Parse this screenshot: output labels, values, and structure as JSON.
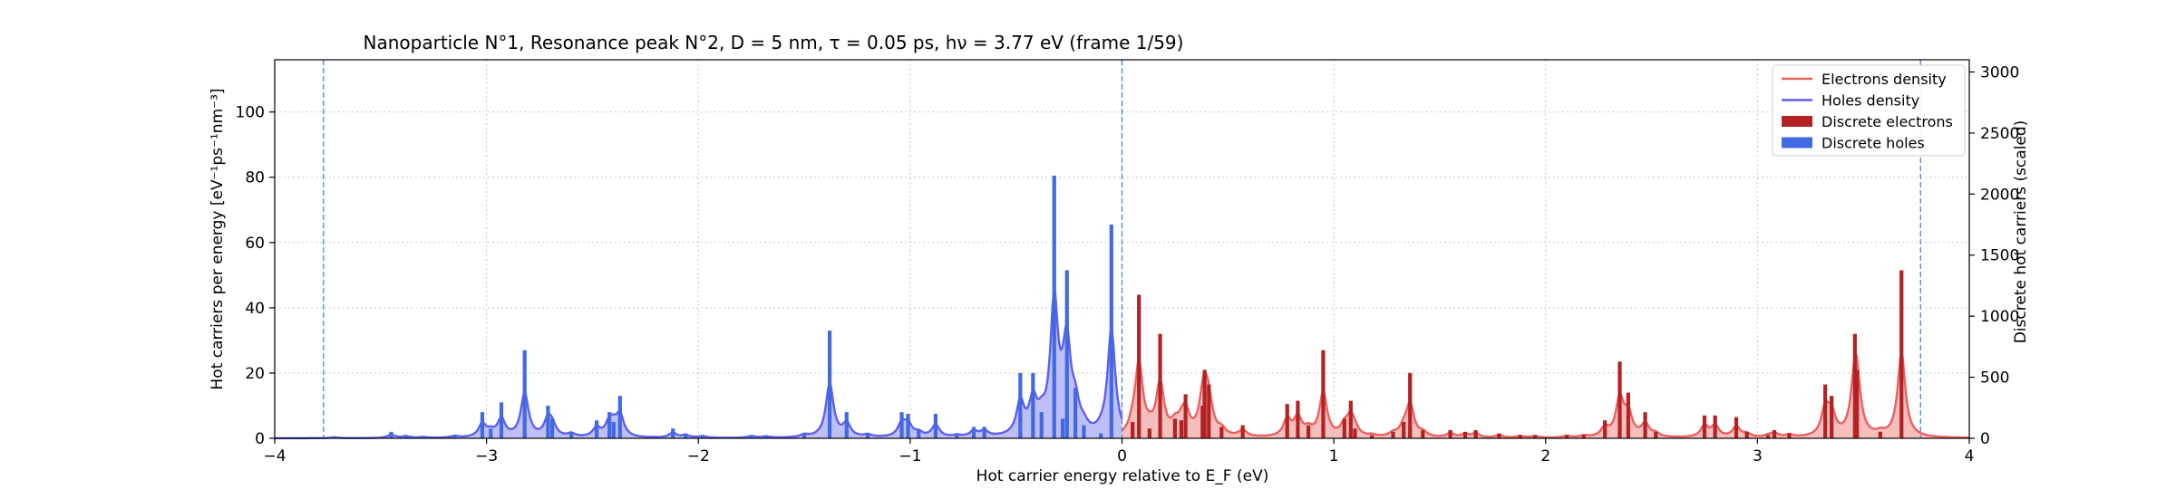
{
  "chart_data": {
    "type": "bar",
    "title": "Nanoparticle N°1, Resonance peak N°2, D = 5 nm, τ = 0.05 ps, hν = 3.77 eV   (frame 1/59)",
    "xlabel": "Hot carrier energy relative to E_F (eV)",
    "ylabel": "Hot carriers per energy [eV⁻¹ps⁻¹nm⁻³]",
    "y2label": "Discrete hot carriers (scaled)",
    "xlim": [
      -4,
      4
    ],
    "ylim": [
      0,
      116
    ],
    "y2lim": [
      0,
      3100
    ],
    "xticks": [
      -4,
      -3,
      -2,
      -1,
      0,
      1,
      2,
      3,
      4
    ],
    "xtick_labels": [
      "−4",
      "−3",
      "−2",
      "−1",
      "0",
      "1",
      "2",
      "3",
      "4"
    ],
    "yticks": [
      0,
      20,
      40,
      60,
      80,
      100
    ],
    "y2ticks": [
      0,
      500,
      1000,
      1500,
      2000,
      2500,
      3000
    ],
    "grid": true,
    "legend_position": "top-right",
    "vlines": [
      -3.77,
      0,
      3.77
    ],
    "colors": {
      "electrons_line": "#ee5f5f",
      "electrons_fill": "#f4a8a8",
      "holes_line": "#5d5ff0",
      "holes_fill": "#a9aaf4",
      "electron_bars": "#b22222",
      "hole_bars": "#4169e1",
      "vline": "#5a8fc7"
    },
    "legend": [
      {
        "label": "Electrons density",
        "kind": "line",
        "color": "#ee5f5f"
      },
      {
        "label": "Holes density",
        "kind": "line",
        "color": "#5d5ff0"
      },
      {
        "label": "Discrete electrons",
        "kind": "patch",
        "color": "#b22222"
      },
      {
        "label": "Discrete holes",
        "kind": "patch",
        "color": "#4169e1"
      }
    ],
    "hole_bars": [
      [
        -3.72,
        0.5
      ],
      [
        -3.45,
        2
      ],
      [
        -3.38,
        1
      ],
      [
        -3.3,
        0.5
      ],
      [
        -3.15,
        1
      ],
      [
        -3.02,
        8
      ],
      [
        -2.98,
        3
      ],
      [
        -2.93,
        11
      ],
      [
        -2.82,
        27
      ],
      [
        -2.71,
        10
      ],
      [
        -2.69,
        6
      ],
      [
        -2.6,
        2
      ],
      [
        -2.48,
        5.5
      ],
      [
        -2.42,
        8
      ],
      [
        -2.4,
        5
      ],
      [
        -2.37,
        13
      ],
      [
        -2.12,
        3
      ],
      [
        -2.06,
        1.5
      ],
      [
        -1.98,
        1
      ],
      [
        -1.75,
        1
      ],
      [
        -1.68,
        0.8
      ],
      [
        -1.5,
        1.5
      ],
      [
        -1.38,
        33
      ],
      [
        -1.3,
        8
      ],
      [
        -1.2,
        1.5
      ],
      [
        -1.04,
        8
      ],
      [
        -1.01,
        7.5
      ],
      [
        -0.96,
        2.5
      ],
      [
        -0.88,
        7.5
      ],
      [
        -0.78,
        1
      ],
      [
        -0.7,
        3.5
      ],
      [
        -0.65,
        3.5
      ],
      [
        -0.48,
        20
      ],
      [
        -0.42,
        20
      ],
      [
        -0.38,
        8
      ],
      [
        -0.32,
        80.5
      ],
      [
        -0.28,
        6
      ],
      [
        -0.26,
        51.5
      ],
      [
        -0.22,
        15.5
      ],
      [
        -0.18,
        4
      ],
      [
        -0.1,
        1.5
      ],
      [
        -0.05,
        65.5
      ]
    ],
    "electron_bars": [
      [
        0.05,
        5
      ],
      [
        0.08,
        44
      ],
      [
        0.13,
        3
      ],
      [
        0.18,
        32
      ],
      [
        0.25,
        6
      ],
      [
        0.28,
        5.5
      ],
      [
        0.3,
        13.5
      ],
      [
        0.38,
        10
      ],
      [
        0.39,
        21
      ],
      [
        0.41,
        16.5
      ],
      [
        0.47,
        3.5
      ],
      [
        0.57,
        4
      ],
      [
        0.78,
        10.5
      ],
      [
        0.83,
        11.5
      ],
      [
        0.88,
        4
      ],
      [
        0.95,
        27
      ],
      [
        1.05,
        6
      ],
      [
        1.08,
        11.5
      ],
      [
        1.1,
        3
      ],
      [
        1.18,
        1
      ],
      [
        1.28,
        2
      ],
      [
        1.33,
        5
      ],
      [
        1.36,
        20
      ],
      [
        1.42,
        2.5
      ],
      [
        1.55,
        2.5
      ],
      [
        1.62,
        2
      ],
      [
        1.67,
        2.5
      ],
      [
        1.78,
        1.5
      ],
      [
        1.88,
        1
      ],
      [
        1.95,
        1
      ],
      [
        2.1,
        1
      ],
      [
        2.18,
        1
      ],
      [
        2.28,
        5.5
      ],
      [
        2.35,
        23.5
      ],
      [
        2.39,
        14
      ],
      [
        2.47,
        8
      ],
      [
        2.52,
        2
      ],
      [
        2.75,
        7
      ],
      [
        2.8,
        7
      ],
      [
        2.9,
        6.5
      ],
      [
        2.95,
        2
      ],
      [
        3.05,
        1
      ],
      [
        3.08,
        2.5
      ],
      [
        3.15,
        1.5
      ],
      [
        3.32,
        16.5
      ],
      [
        3.35,
        13
      ],
      [
        3.46,
        32
      ],
      [
        3.47,
        21
      ],
      [
        3.58,
        2
      ],
      [
        3.68,
        51.5
      ]
    ]
  }
}
